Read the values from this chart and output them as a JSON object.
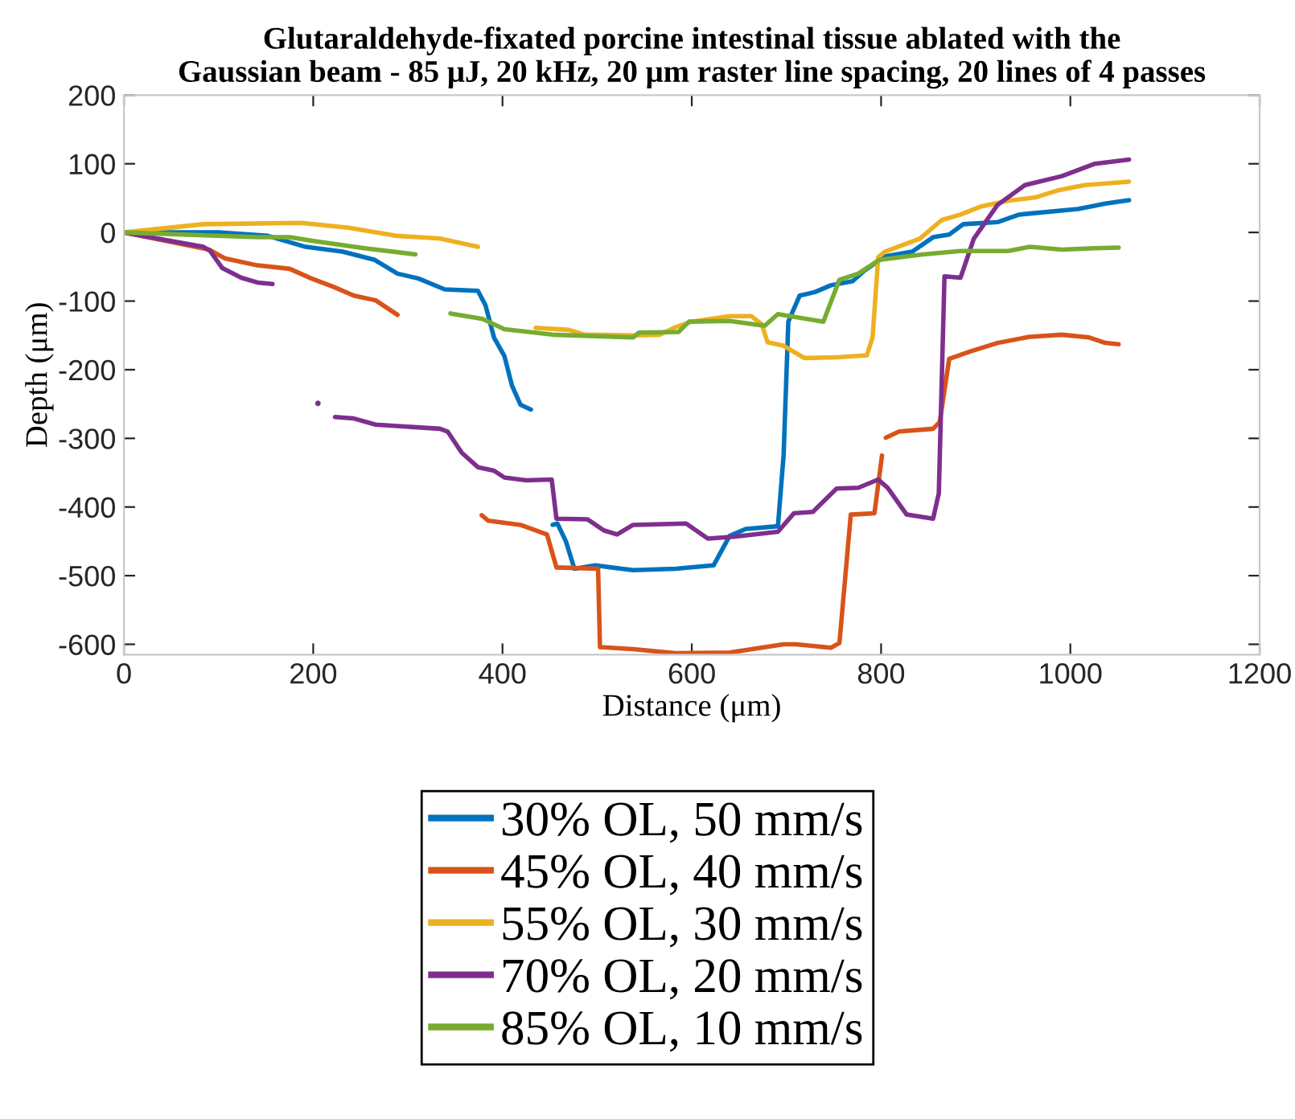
{
  "chart_data": {
    "type": "line",
    "title": "Glutaraldehyde-fixated porcine intestinal tissue ablated with the\nGaussian beam - 85 μJ, 20 kHz, 20 μm raster line spacing, 20 lines of 4 passes",
    "xlabel": "Distance (μm)",
    "ylabel": "Depth (μm)",
    "xlim": [
      0,
      1200
    ],
    "ylim": [
      -615,
      200
    ],
    "xticks": [
      0,
      200,
      400,
      600,
      800,
      1000,
      1200
    ],
    "yticks": [
      -600,
      -500,
      -400,
      -300,
      -200,
      -100,
      0,
      100,
      200
    ],
    "grid": false,
    "legend": "bottom",
    "marker": "none",
    "line_style": "solid",
    "series": [
      {
        "name": "30% OL, 50 mm/s",
        "color": "#0072bd",
        "x": [
          0,
          100,
          152,
          192,
          231,
          265,
          289,
          311,
          339,
          374,
          382,
          391,
          402,
          410,
          419,
          430,
          440,
          453,
          458,
          467,
          476,
          498,
          538,
          583,
          623,
          640,
          657,
          691,
          697,
          702,
          714,
          730,
          747,
          770,
          782,
          804,
          833,
          855,
          872,
          887,
          923,
          946,
          1008,
          1037,
          1062
        ],
        "values": [
          0,
          0,
          -5,
          -21,
          -28,
          -40,
          -60,
          -67,
          -83,
          -85,
          -106,
          -153,
          -180,
          -223,
          -251,
          -258,
          null,
          -426,
          -424,
          -450,
          -490,
          -485,
          -492,
          -490,
          -485,
          -442,
          -432,
          -428,
          -325,
          -130,
          -92,
          -87,
          -77,
          -71,
          -56,
          -35,
          -28,
          -7,
          -3,
          12,
          15,
          26,
          34,
          42,
          47
        ]
      },
      {
        "name": "45% OL, 40 mm/s",
        "color": "#d95319",
        "x": [
          0,
          90,
          107,
          141,
          175,
          198,
          221,
          243,
          266,
          289,
          330,
          378,
          385,
          419,
          447,
          457,
          501,
          503,
          538,
          583,
          640,
          697,
          710,
          747,
          756,
          768,
          793,
          801,
          803,
          805,
          819,
          855,
          862,
          872,
          895,
          923,
          957,
          991,
          1020,
          1037,
          1051
        ],
        "values": [
          0,
          -25,
          -38,
          -48,
          -53,
          -67,
          -79,
          -92,
          -99,
          -120,
          null,
          -412,
          -420,
          -426,
          -440,
          -488,
          -490,
          -604,
          -607,
          -613,
          -612,
          -600,
          -600,
          -605,
          -598,
          -411,
          -409,
          -325,
          null,
          -299,
          -290,
          -286,
          -276,
          -184,
          -173,
          -161,
          -152,
          -149,
          -153,
          -161,
          -163
        ]
      },
      {
        "name": "55% OL, 30 mm/s",
        "color": "#edb120",
        "x": [
          0,
          84,
          187,
          237,
          289,
          334,
          374,
          400,
          435,
          470,
          487,
          538,
          566,
          583,
          600,
          640,
          663,
          674,
          680,
          697,
          719,
          753,
          785,
          791,
          797,
          804,
          841,
          864,
          884,
          906,
          934,
          963,
          986,
          1015,
          1062
        ],
        "values": [
          0,
          12,
          14,
          7,
          -5,
          -9,
          -21,
          null,
          -139,
          -142,
          -149,
          -150,
          -149,
          -138,
          -130,
          -122,
          -122,
          -134,
          -160,
          -165,
          -183,
          -182,
          -179,
          -153,
          -36,
          -28,
          -9,
          18,
          26,
          38,
          46,
          51,
          61,
          69,
          74
        ]
      },
      {
        "name": "70% OL, 20 mm/s",
        "color": "#7e2f8e",
        "x": [
          0,
          84,
          91,
          104,
          124,
          141,
          157,
          180,
          204,
          206,
          215,
          223,
          243,
          266,
          334,
          342,
          357,
          374,
          391,
          402,
          425,
          452,
          457,
          490,
          507,
          521,
          538,
          594,
          617,
          646,
          691,
          708,
          728,
          753,
          776,
          797,
          807,
          827,
          855,
          861,
          867,
          884,
          898,
          923,
          952,
          991,
          1026,
          1062
        ],
        "values": [
          0,
          -21,
          -27,
          -52,
          -66,
          -73,
          -75,
          null,
          null,
          null,
          null,
          -269,
          -271,
          -280,
          -286,
          -290,
          -321,
          -342,
          -347,
          -357,
          -361,
          -360,
          -417,
          -418,
          -434,
          -440,
          -426,
          -424,
          -446,
          -443,
          -436,
          -409,
          -407,
          -373,
          -372,
          -360,
          -372,
          -411,
          -417,
          -380,
          -64,
          -66,
          -9,
          40,
          69,
          82,
          100,
          106
        ]
      },
      {
        "type": "scatter",
        "color": "#7e2f8e",
        "x": [
          205
        ],
        "values": [
          -249
        ]
      },
      {
        "name": "85% OL, 10 mm/s",
        "color": "#77ac30",
        "x": [
          0,
          141,
          175,
          203,
          254,
          308,
          325,
          345,
          379,
          402,
          453,
          538,
          544,
          586,
          597,
          640,
          677,
          691,
          739,
          756,
          776,
          798,
          844,
          884,
          934,
          957,
          991,
          1026,
          1051
        ],
        "values": [
          0,
          -7,
          -7,
          -13,
          -23,
          -32,
          null,
          -118,
          -126,
          -141,
          -149,
          -153,
          -146,
          -145,
          -130,
          -129,
          -136,
          -119,
          -130,
          -69,
          -60,
          -40,
          -32,
          -27,
          -27,
          -21,
          -25,
          -23,
          -22
        ]
      }
    ]
  }
}
